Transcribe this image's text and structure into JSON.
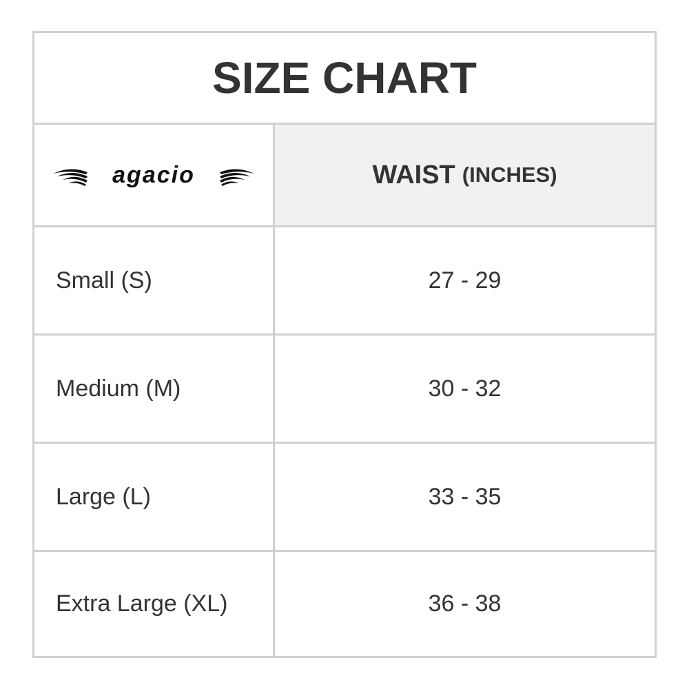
{
  "title": "SIZE CHART",
  "brand": "agacio",
  "header": {
    "measure": "WAIST",
    "unit": "(INCHES)"
  },
  "rows": [
    {
      "size": "Small (S)",
      "waist": "27 - 29"
    },
    {
      "size": "Medium (M)",
      "waist": "30 - 32"
    },
    {
      "size": "Large (L)",
      "waist": "33 - 35"
    },
    {
      "size": "Extra Large (XL)",
      "waist": "36 - 38"
    }
  ],
  "colors": {
    "border": "#d0d0d0",
    "header_bg": "#f1f1f1",
    "text": "#333333"
  }
}
